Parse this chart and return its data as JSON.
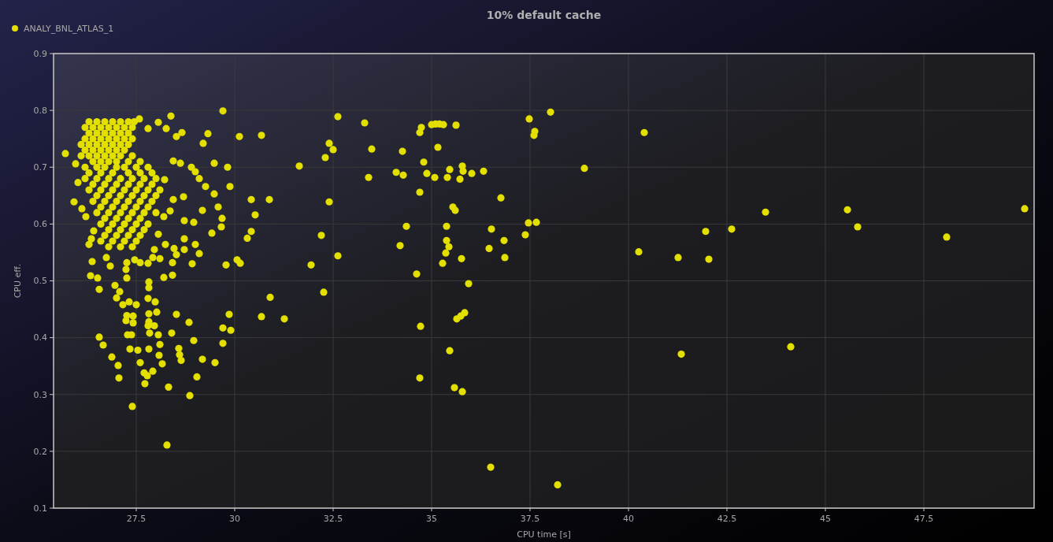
{
  "chart_data": {
    "type": "scatter",
    "title": "10% default cache",
    "xlabel": "CPU time [s]",
    "ylabel": "CPU eff.",
    "xlim": [
      25.4,
      50.3
    ],
    "ylim": [
      0.1,
      0.9
    ],
    "xticks": [
      27.5,
      30,
      32.5,
      35,
      37.5,
      40,
      42.5,
      45,
      47.5
    ],
    "yticks": [
      0.1,
      0.2,
      0.3,
      0.4,
      0.5,
      0.6,
      0.7,
      0.8,
      0.9
    ],
    "grid": true,
    "legend": "top left",
    "marker": "circle",
    "series": [
      {
        "name": "ANALY_BNL_ATLAS_1",
        "color": "#e3e000",
        "x": [
          50.06,
          48.08,
          45.82,
          45.56,
          43.48,
          44.12,
          42.62,
          42.04,
          41.96,
          41.34,
          41.26,
          40.26,
          40.4,
          38.88,
          38.02,
          38.2,
          37.48,
          37.62,
          37.6,
          37.66,
          37.46,
          37.38,
          36.5,
          36.86,
          36.84,
          36.76,
          36.52,
          36.46,
          32.62,
          33.3,
          34.7,
          34.74,
          35.0,
          35.1,
          35.2,
          35.3,
          35.62,
          30.12,
          30.68,
          32.4,
          32.5,
          32.3,
          33.48,
          34.26,
          35.16,
          29.82,
          31.64,
          33.4,
          34.1,
          34.28,
          34.8,
          34.88,
          35.08,
          35.46,
          35.4,
          35.78,
          35.8,
          35.72,
          36.02,
          36.32,
          34.7,
          29.88,
          30.42,
          30.88,
          32.4,
          35.54,
          35.6,
          30.52,
          30.42,
          30.32,
          32.2,
          34.36,
          35.38,
          34.2,
          35.38,
          35.44,
          35.36,
          35.76,
          35.28,
          32.62,
          31.94,
          30.06,
          30.14,
          29.78,
          34.62,
          35.94,
          32.26,
          30.9,
          29.86,
          30.68,
          31.26,
          29.7,
          29.9,
          29.7,
          35.84,
          35.74,
          35.64,
          34.72,
          35.46,
          34.7,
          35.58,
          35.78,
          25.7,
          28.38,
          29.7,
          29.32,
          29.2,
          28.66,
          28.52,
          28.26,
          28.06,
          27.8,
          27.58,
          29.48,
          28.9,
          29.0,
          29.1,
          28.62,
          28.44,
          29.26,
          29.48,
          29.58,
          29.18,
          29.68,
          29.66,
          29.42,
          28.7,
          28.44,
          28.22,
          28.36,
          28.2,
          28.96,
          28.72,
          28.72,
          29.0,
          29.1,
          28.92,
          28.72,
          28.46,
          28.52,
          28.42,
          28.2,
          28.42,
          28.06,
          28.24,
          27.96,
          28.1,
          27.92,
          27.8,
          27.6,
          27.46,
          27.26,
          27.24,
          27.26,
          26.84,
          26.38,
          26.74,
          26.34,
          26.52,
          26.56,
          26.96,
          27.08,
          27.0,
          27.16,
          27.32,
          27.5,
          27.82,
          27.82,
          27.8,
          27.98,
          28.52,
          27.82,
          28.02,
          27.26,
          27.42,
          27.24,
          27.42,
          27.82,
          27.8,
          27.96,
          27.84,
          28.06,
          28.4,
          28.84,
          26.56,
          26.66,
          27.28,
          27.38,
          27.34,
          27.54,
          27.82,
          28.1,
          28.08,
          28.16,
          28.58,
          28.6,
          28.64,
          28.96,
          29.18,
          29.5,
          29.04,
          26.88,
          27.04,
          27.06,
          27.6,
          27.7,
          27.78,
          27.92,
          27.72,
          28.32,
          28.86,
          27.4,
          26.36,
          26.3,
          25.92,
          26.02,
          25.96,
          26.12,
          26.22,
          26.42,
          28.28,
          26.3,
          26.5,
          26.7,
          26.9,
          27.1,
          27.3,
          27.45,
          26.2,
          26.4,
          26.6,
          26.8,
          27.0,
          27.2,
          27.4,
          26.3,
          26.5,
          26.7,
          26.9,
          27.1,
          27.3,
          26.2,
          26.4,
          26.6,
          26.8,
          27.0,
          27.2,
          27.4,
          26.1,
          26.3,
          26.5,
          26.7,
          26.9,
          27.1,
          27.3,
          26.2,
          26.4,
          26.6,
          26.8,
          27.0,
          27.2,
          26.1,
          26.3,
          26.5,
          26.7,
          26.9,
          27.1,
          27.4,
          26.4,
          26.6,
          26.8,
          27.0,
          27.3,
          27.6,
          26.2,
          26.5,
          26.7,
          27.0,
          27.2,
          27.5,
          27.8,
          26.3,
          26.6,
          26.9,
          27.3,
          27.6,
          27.9,
          26.2,
          26.5,
          26.8,
          27.1,
          27.4,
          27.7,
          28.0,
          26.4,
          26.7,
          27.0,
          27.3,
          27.6,
          27.9,
          26.3,
          26.6,
          26.9,
          27.2,
          27.5,
          27.8,
          28.1,
          26.5,
          26.8,
          27.1,
          27.4,
          27.7,
          28.0,
          26.4,
          26.7,
          27.0,
          27.3,
          27.6,
          27.9,
          26.6,
          26.9,
          27.2,
          27.5,
          27.8,
          26.5,
          26.8,
          27.1,
          27.4,
          27.7,
          28.0,
          26.7,
          27.0,
          27.3,
          27.6,
          26.6,
          26.9,
          27.2,
          27.5,
          27.8,
          26.8,
          27.1,
          27.4,
          27.7,
          26.7,
          27.0,
          27.3,
          27.6,
          26.6,
          26.9,
          27.2,
          27.5,
          26.8,
          27.1,
          27.4
        ],
        "values": [
          0.627,
          0.577,
          0.595,
          0.625,
          0.621,
          0.384,
          0.591,
          0.538,
          0.587,
          0.371,
          0.541,
          0.551,
          0.761,
          0.698,
          0.797,
          0.141,
          0.785,
          0.763,
          0.756,
          0.603,
          0.602,
          0.581,
          0.172,
          0.541,
          0.571,
          0.646,
          0.591,
          0.557,
          0.789,
          0.778,
          0.761,
          0.77,
          0.775,
          0.776,
          0.776,
          0.775,
          0.774,
          0.754,
          0.756,
          0.742,
          0.731,
          0.717,
          0.732,
          0.728,
          0.735,
          0.7,
          0.702,
          0.682,
          0.691,
          0.686,
          0.709,
          0.689,
          0.682,
          0.696,
          0.682,
          0.702,
          0.693,
          0.679,
          0.689,
          0.693,
          0.656,
          0.666,
          0.643,
          0.643,
          0.639,
          0.63,
          0.624,
          0.616,
          0.587,
          0.575,
          0.58,
          0.596,
          0.596,
          0.562,
          0.571,
          0.56,
          0.549,
          0.539,
          0.531,
          0.544,
          0.528,
          0.537,
          0.531,
          0.528,
          0.512,
          0.495,
          0.48,
          0.471,
          0.441,
          0.437,
          0.433,
          0.417,
          0.413,
          0.39,
          0.444,
          0.438,
          0.433,
          0.42,
          0.377,
          0.329,
          0.312,
          0.305,
          0.724,
          0.79,
          0.799,
          0.759,
          0.742,
          0.761,
          0.754,
          0.768,
          0.779,
          0.768,
          0.785,
          0.707,
          0.7,
          0.692,
          0.68,
          0.707,
          0.711,
          0.666,
          0.653,
          0.63,
          0.624,
          0.61,
          0.595,
          0.584,
          0.648,
          0.643,
          0.678,
          0.623,
          0.613,
          0.603,
          0.606,
          0.574,
          0.564,
          0.548,
          0.53,
          0.555,
          0.557,
          0.546,
          0.532,
          0.506,
          0.51,
          0.582,
          0.564,
          0.555,
          0.539,
          0.541,
          0.531,
          0.532,
          0.537,
          0.532,
          0.52,
          0.505,
          0.526,
          0.534,
          0.541,
          0.509,
          0.505,
          0.485,
          0.492,
          0.481,
          0.47,
          0.458,
          0.463,
          0.458,
          0.498,
          0.488,
          0.469,
          0.463,
          0.441,
          0.442,
          0.445,
          0.439,
          0.438,
          0.43,
          0.426,
          0.428,
          0.421,
          0.421,
          0.408,
          0.405,
          0.408,
          0.427,
          0.401,
          0.387,
          0.405,
          0.405,
          0.38,
          0.378,
          0.38,
          0.388,
          0.369,
          0.354,
          0.381,
          0.37,
          0.36,
          0.395,
          0.362,
          0.356,
          0.331,
          0.366,
          0.351,
          0.329,
          0.356,
          0.338,
          0.333,
          0.341,
          0.319,
          0.313,
          0.298,
          0.279,
          0.574,
          0.564,
          0.639,
          0.673,
          0.706,
          0.627,
          0.613,
          0.588,
          0.211,
          0.78,
          0.78,
          0.78,
          0.78,
          0.78,
          0.78,
          0.78,
          0.77,
          0.77,
          0.77,
          0.77,
          0.77,
          0.77,
          0.77,
          0.76,
          0.76,
          0.76,
          0.76,
          0.76,
          0.76,
          0.75,
          0.75,
          0.75,
          0.75,
          0.75,
          0.75,
          0.75,
          0.74,
          0.74,
          0.74,
          0.74,
          0.74,
          0.74,
          0.74,
          0.73,
          0.73,
          0.73,
          0.73,
          0.73,
          0.73,
          0.72,
          0.72,
          0.72,
          0.72,
          0.72,
          0.72,
          0.72,
          0.71,
          0.71,
          0.71,
          0.71,
          0.71,
          0.71,
          0.7,
          0.7,
          0.7,
          0.7,
          0.7,
          0.7,
          0.7,
          0.69,
          0.69,
          0.69,
          0.69,
          0.69,
          0.69,
          0.68,
          0.68,
          0.68,
          0.68,
          0.68,
          0.68,
          0.68,
          0.67,
          0.67,
          0.67,
          0.67,
          0.67,
          0.67,
          0.66,
          0.66,
          0.66,
          0.66,
          0.66,
          0.66,
          0.66,
          0.65,
          0.65,
          0.65,
          0.65,
          0.65,
          0.65,
          0.64,
          0.64,
          0.64,
          0.64,
          0.64,
          0.64,
          0.63,
          0.63,
          0.63,
          0.63,
          0.63,
          0.62,
          0.62,
          0.62,
          0.62,
          0.62,
          0.62,
          0.61,
          0.61,
          0.61,
          0.61,
          0.6,
          0.6,
          0.6,
          0.6,
          0.6,
          0.59,
          0.59,
          0.59,
          0.59,
          0.58,
          0.58,
          0.58,
          0.58,
          0.57,
          0.57,
          0.57,
          0.57,
          0.56,
          0.56,
          0.56
        ]
      }
    ]
  }
}
